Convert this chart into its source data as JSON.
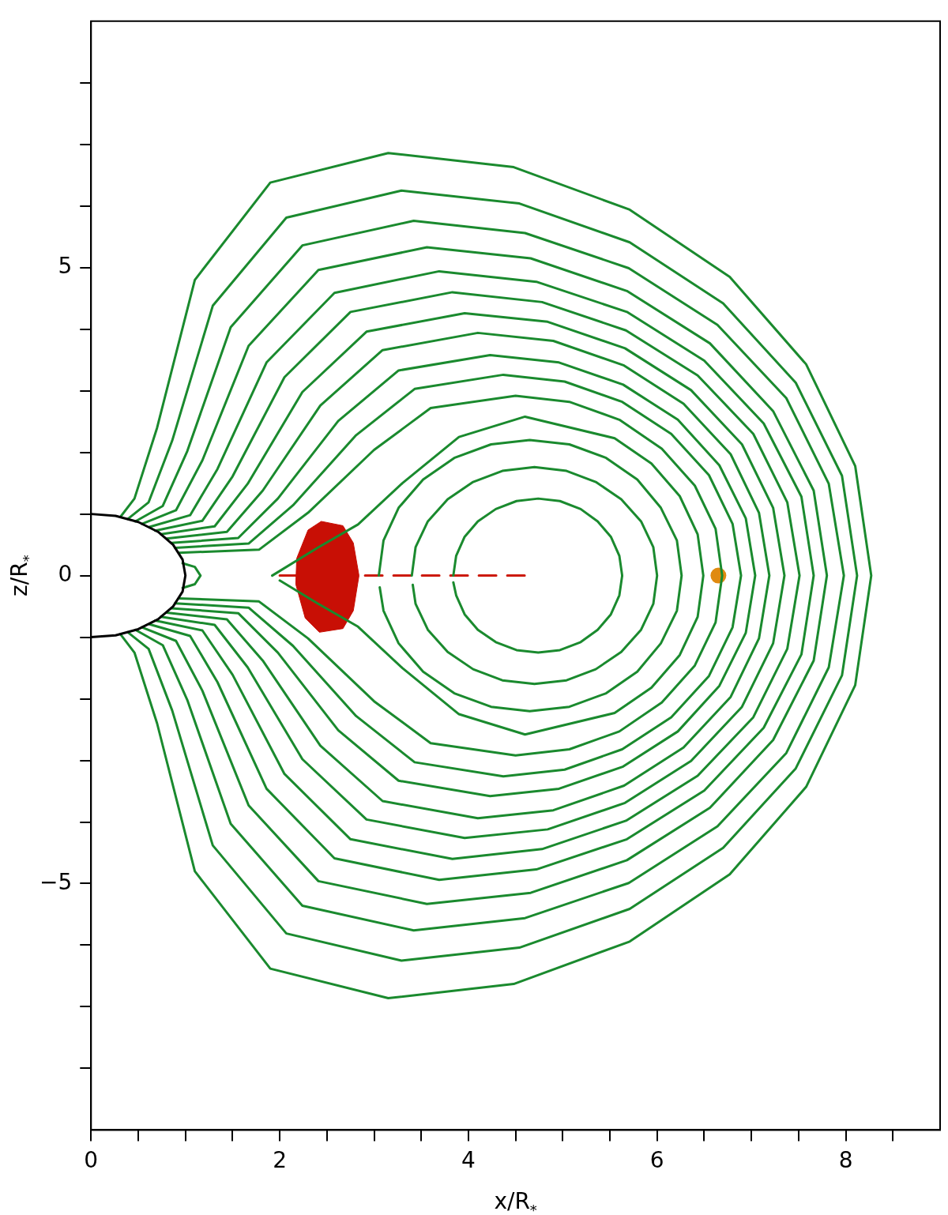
{
  "chart_data": {
    "type": "line",
    "xlabel": "x/R$_{*}$",
    "ylabel": "z/R$_{*}$",
    "xlim": [
      0,
      9
    ],
    "ylim": [
      -9,
      9
    ],
    "xticks": [
      0,
      {
        "value": 0.5,
        "label": null
      },
      2,
      {
        "value": 1,
        "label": null
      },
      {
        "value": 1.5,
        "label": null
      },
      {
        "value": 2.5,
        "label": null
      },
      {
        "value": 3,
        "label": null
      },
      {
        "value": 3.5,
        "label": null
      },
      4,
      {
        "value": 4.5,
        "label": null
      },
      {
        "value": 5,
        "label": null
      },
      {
        "value": 5.5,
        "label": null
      },
      6,
      {
        "value": 6.5,
        "label": null
      },
      {
        "value": 7,
        "label": null
      },
      {
        "value": 7.5,
        "label": null
      },
      8,
      {
        "value": 8.5,
        "label": null
      }
    ],
    "yticks": [
      {
        "value": -8,
        "label": null
      },
      {
        "value": -7,
        "label": null
      },
      {
        "value": -6,
        "label": null
      },
      {
        "value": -5,
        "label": "−5"
      },
      {
        "value": -4,
        "label": null
      },
      {
        "value": -3,
        "label": null
      },
      {
        "value": -2,
        "label": null
      },
      {
        "value": -1,
        "label": null
      },
      0,
      {
        "value": 1,
        "label": null
      },
      {
        "value": 2,
        "label": null
      },
      {
        "value": 3,
        "label": null
      },
      {
        "value": 4,
        "label": null
      },
      5,
      {
        "value": 6,
        "label": null
      },
      {
        "value": 7,
        "label": null
      },
      {
        "value": 8,
        "label": null
      }
    ],
    "grid": false,
    "legend": false,
    "series": [
      {
        "type": "line",
        "color": "#000000",
        "x": [
          0,
          0.26,
          0.5,
          0.71,
          0.87,
          0.97,
          1,
          0.97,
          0.87,
          0.71,
          0.5,
          0.26,
          0
        ],
        "values": [
          1,
          0.97,
          0.87,
          0.71,
          0.5,
          0.26,
          0,
          -0.26,
          -0.5,
          -0.71,
          -0.87,
          -0.97,
          -1
        ]
      },
      {
        "type": "line",
        "color": "#1a8a2e",
        "x": [
          0.97,
          1.1,
          1.16,
          1.1,
          0.97
        ],
        "values": [
          0.2,
          0.14,
          0,
          -0.14,
          -0.2
        ]
      },
      {
        "type": "line",
        "color": "#1a8a2e",
        "x": [
          0.31,
          0.46,
          0.7,
          1.1,
          1.9,
          3.15,
          4.48,
          5.71,
          6.77,
          7.58,
          8.1,
          8.27,
          8.1,
          7.58,
          6.77,
          5.71,
          4.48,
          3.15,
          1.9,
          1.1,
          0.7,
          0.46,
          0.31
        ],
        "values": [
          0.95,
          1.25,
          2.4,
          4.8,
          6.38,
          6.86,
          6.63,
          5.94,
          4.85,
          3.43,
          1.78,
          0,
          -1.78,
          -3.43,
          -4.85,
          -5.94,
          -6.63,
          -6.86,
          -6.38,
          -4.8,
          -2.4,
          -1.25,
          -0.95
        ]
      },
      {
        "type": "line",
        "color": "#1a8a2e",
        "x": [
          0.39,
          0.61,
          0.86,
          1.29,
          2.07,
          3.29,
          4.54,
          5.71,
          6.7,
          7.47,
          7.96,
          8.12,
          7.96,
          7.47,
          6.7,
          5.71,
          4.54,
          3.29,
          2.07,
          1.29,
          0.86,
          0.61,
          0.39
        ],
        "values": [
          0.92,
          1.19,
          2.19,
          4.38,
          5.81,
          6.25,
          6.04,
          5.41,
          4.42,
          3.13,
          1.62,
          0,
          -1.62,
          -3.13,
          -4.42,
          -5.41,
          -6.04,
          -6.25,
          -5.81,
          -4.38,
          -2.19,
          -1.19,
          -0.92
        ]
      },
      {
        "type": "line",
        "color": "#1a8a2e",
        "x": [
          0.47,
          0.76,
          1.02,
          1.48,
          2.24,
          3.42,
          4.6,
          5.7,
          6.64,
          7.37,
          7.82,
          7.98,
          7.82,
          7.37,
          6.64,
          5.7,
          4.6,
          3.42,
          2.24,
          1.48,
          1.02,
          0.76,
          0.47
        ],
        "values": [
          0.88,
          1.13,
          2.02,
          4.03,
          5.36,
          5.76,
          5.56,
          4.99,
          4.07,
          2.88,
          1.49,
          0,
          -1.49,
          -2.88,
          -4.07,
          -4.99,
          -5.56,
          -5.76,
          -5.36,
          -4.03,
          -2.02,
          -1.13,
          -0.88
        ]
      },
      {
        "type": "line",
        "color": "#1a8a2e",
        "x": [
          0.54,
          0.9,
          1.18,
          1.67,
          2.41,
          3.56,
          4.66,
          5.68,
          6.56,
          7.23,
          7.66,
          7.8,
          7.66,
          7.23,
          6.56,
          5.68,
          4.66,
          3.56,
          2.41,
          1.67,
          1.18,
          0.9,
          0.54
        ],
        "values": [
          0.84,
          1.06,
          1.87,
          3.73,
          4.96,
          5.33,
          5.15,
          4.62,
          3.77,
          2.67,
          1.38,
          0,
          -1.38,
          -2.67,
          -3.77,
          -4.62,
          -5.15,
          -5.33,
          -4.96,
          -3.73,
          -1.87,
          -1.06,
          -0.84
        ]
      },
      {
        "type": "line",
        "color": "#1a8a2e",
        "x": [
          0.62,
          1.05,
          1.34,
          1.86,
          2.58,
          3.69,
          4.72,
          5.68,
          6.5,
          7.13,
          7.53,
          7.66,
          7.53,
          7.13,
          6.5,
          5.68,
          4.72,
          3.69,
          2.58,
          1.86,
          1.34,
          1.05,
          0.62
        ],
        "values": [
          0.79,
          0.98,
          1.73,
          3.46,
          4.59,
          4.94,
          4.77,
          4.28,
          3.49,
          2.47,
          1.28,
          0,
          -1.28,
          -2.47,
          -3.49,
          -4.28,
          -4.77,
          -4.94,
          -4.59,
          -3.46,
          -1.73,
          -0.98,
          -0.79
        ]
      },
      {
        "type": "line",
        "color": "#1a8a2e",
        "x": [
          0.68,
          1.18,
          1.5,
          2.05,
          2.75,
          3.83,
          4.78,
          5.67,
          6.43,
          7.02,
          7.38,
          7.51,
          7.38,
          7.02,
          6.43,
          5.67,
          4.78,
          3.83,
          2.75,
          2.05,
          1.5,
          1.18,
          0.68
        ],
        "values": [
          0.73,
          0.89,
          1.61,
          3.22,
          4.28,
          4.6,
          4.44,
          3.98,
          3.25,
          2.3,
          1.19,
          0,
          -1.19,
          -2.3,
          -3.25,
          -3.98,
          -4.44,
          -4.6,
          -4.28,
          -3.22,
          -1.61,
          -0.89,
          -0.73
        ]
      },
      {
        "type": "line",
        "color": "#1a8a2e",
        "x": [
          0.74,
          1.31,
          1.66,
          2.24,
          2.92,
          3.96,
          4.84,
          5.66,
          6.36,
          6.9,
          7.23,
          7.35,
          7.23,
          6.9,
          6.36,
          5.66,
          4.84,
          3.96,
          2.92,
          2.24,
          1.66,
          1.31,
          0.74
        ],
        "values": [
          0.67,
          0.8,
          1.49,
          2.98,
          3.96,
          4.26,
          4.12,
          3.69,
          3.01,
          2.13,
          1.1,
          0,
          -1.1,
          -2.13,
          -3.01,
          -3.69,
          -4.12,
          -4.26,
          -3.96,
          -2.98,
          -1.49,
          -0.8,
          -0.67
        ]
      },
      {
        "type": "line",
        "color": "#1a8a2e",
        "x": [
          0.8,
          1.44,
          1.82,
          2.43,
          3.09,
          4.1,
          4.9,
          5.65,
          6.28,
          6.78,
          7.08,
          7.19,
          7.08,
          6.78,
          6.28,
          5.65,
          4.9,
          4.1,
          3.09,
          2.43,
          1.82,
          1.44,
          0.8
        ],
        "values": [
          0.6,
          0.71,
          1.38,
          2.76,
          3.66,
          3.94,
          3.81,
          3.41,
          2.79,
          1.97,
          1.02,
          0,
          -1.02,
          -1.97,
          -2.79,
          -3.41,
          -3.81,
          -3.94,
          -3.66,
          -2.76,
          -1.38,
          -0.71,
          -0.6
        ]
      },
      {
        "type": "line",
        "color": "#1a8a2e",
        "x": [
          0.85,
          1.56,
          1.98,
          2.62,
          3.26,
          4.23,
          4.96,
          5.64,
          6.22,
          6.66,
          6.94,
          7.04,
          6.94,
          6.66,
          6.22,
          5.64,
          4.96,
          4.23,
          3.26,
          2.62,
          1.98,
          1.56,
          0.85
        ],
        "values": [
          0.53,
          0.61,
          1.25,
          2.51,
          3.33,
          3.58,
          3.46,
          3.1,
          2.53,
          1.79,
          0.93,
          0,
          -0.93,
          -1.79,
          -2.53,
          -3.1,
          -3.46,
          -3.58,
          -3.33,
          -2.51,
          -1.25,
          -0.61,
          -0.53
        ]
      },
      {
        "type": "line",
        "color": "#1a8a2e",
        "x": [
          0.89,
          1.67,
          2.14,
          2.81,
          3.43,
          4.37,
          5.02,
          5.63,
          6.15,
          6.55,
          6.8,
          6.89,
          6.8,
          6.55,
          6.15,
          5.63,
          5.02,
          4.37,
          3.43,
          2.81,
          2.14,
          1.67,
          0.89
        ],
        "values": [
          0.45,
          0.52,
          1.14,
          2.28,
          3.03,
          3.26,
          3.15,
          2.82,
          2.3,
          1.63,
          0.84,
          0,
          -0.84,
          -1.63,
          -2.3,
          -2.82,
          -3.15,
          -3.26,
          -3.03,
          -2.28,
          -1.14,
          -0.52,
          -0.45
        ]
      },
      {
        "type": "line",
        "color": "#1a8a2e",
        "x": [
          0.93,
          1.78,
          2.3,
          3.0,
          3.6,
          4.5,
          5.07,
          5.6,
          6.05,
          6.4,
          6.62,
          6.69,
          6.62,
          6.4,
          6.05,
          5.6,
          5.07,
          4.5,
          3.6,
          3.0,
          2.3,
          1.78,
          0.93
        ],
        "values": [
          0.37,
          0.42,
          1.02,
          2.04,
          2.72,
          2.92,
          2.82,
          2.53,
          2.06,
          1.46,
          0.76,
          0,
          -0.76,
          -1.46,
          -2.06,
          -2.53,
          -2.82,
          -2.92,
          -2.72,
          -2.04,
          -1.02,
          -0.42,
          -0.37
        ]
      },
      {
        "color": "#1a8a2e",
        "x": [
          1.92,
          2.4,
          2.83,
          3.3,
          3.9,
          4.6,
          5.55,
          5.94,
          6.24,
          6.43,
          6.49,
          6.43,
          6.24,
          5.94,
          5.55,
          4.6,
          3.9,
          3.3,
          2.83,
          2.4,
          2.0
        ],
        "values": [
          0,
          0.45,
          0.83,
          1.5,
          2.25,
          2.58,
          2.23,
          1.82,
          1.29,
          0.67,
          0,
          -0.67,
          -1.29,
          -1.82,
          -2.23,
          -2.58,
          -2.25,
          -1.5,
          -0.83,
          -0.45,
          -0.08
        ]
      },
      {
        "color": "#1a8a2e",
        "x": [
          3.05,
          3.1,
          3.26,
          3.52,
          3.85,
          4.24,
          4.65,
          5.07,
          5.46,
          5.79,
          6.04,
          6.21,
          6.26,
          6.21,
          6.04,
          5.79,
          5.46,
          5.07,
          4.65,
          4.24,
          3.85,
          3.52,
          3.26,
          3.1,
          3.06
        ],
        "values": [
          0,
          0.57,
          1.1,
          1.56,
          1.91,
          2.13,
          2.2,
          2.13,
          1.91,
          1.56,
          1.1,
          0.57,
          0,
          -0.57,
          -1.1,
          -1.56,
          -1.91,
          -2.13,
          -2.2,
          -2.13,
          -1.91,
          -1.56,
          -1.1,
          -0.57,
          -0.19
        ]
      },
      {
        "color": "#1a8a2e",
        "x": [
          3.4,
          3.44,
          3.57,
          3.78,
          4.05,
          4.36,
          4.7,
          5.04,
          5.35,
          5.62,
          5.83,
          5.96,
          6.0,
          5.96,
          5.83,
          5.62,
          5.35,
          5.04,
          4.7,
          4.36,
          4.05,
          3.78,
          3.57,
          3.44,
          3.41
        ],
        "values": [
          0,
          0.46,
          0.88,
          1.24,
          1.52,
          1.7,
          1.76,
          1.7,
          1.52,
          1.24,
          0.88,
          0.46,
          0,
          -0.46,
          -0.88,
          -1.24,
          -1.52,
          -1.7,
          -1.76,
          -1.7,
          -1.52,
          -1.24,
          -0.88,
          -0.46,
          -0.15
        ]
      },
      {
        "color": "#1a8a2e",
        "x": [
          3.84,
          3.87,
          3.96,
          4.1,
          4.29,
          4.51,
          4.74,
          4.97,
          5.19,
          5.37,
          5.51,
          5.6,
          5.63,
          5.6,
          5.51,
          5.37,
          5.19,
          4.97,
          4.74,
          4.51,
          4.29,
          4.1,
          3.96,
          3.87,
          3.84
        ],
        "values": [
          0,
          0.32,
          0.63,
          0.88,
          1.08,
          1.21,
          1.25,
          1.21,
          1.08,
          0.88,
          0.63,
          0.32,
          0,
          -0.32,
          -0.63,
          -0.88,
          -1.08,
          -1.21,
          -1.25,
          -1.21,
          -1.08,
          -0.88,
          -0.63,
          -0.32,
          -0.11
        ]
      },
      {
        "type": "area",
        "color": "#c80f05",
        "x": [
          2.44,
          2.67,
          2.78,
          2.84,
          2.78,
          2.67,
          2.42,
          2.27,
          2.17,
          2.18,
          2.3,
          2.44
        ],
        "values": [
          0.88,
          0.81,
          0.53,
          0,
          -0.57,
          -0.86,
          -0.92,
          -0.69,
          -0.14,
          0.28,
          0.74,
          0.88
        ]
      },
      {
        "color": "#cc1a0a",
        "line_style": "dashed",
        "x": [
          2.0,
          4.6
        ],
        "values": [
          0,
          0
        ]
      },
      {
        "type": "scatter",
        "color": "#e08a10",
        "marker": "circle",
        "x": [
          6.65
        ],
        "values": [
          0
        ]
      }
    ]
  }
}
